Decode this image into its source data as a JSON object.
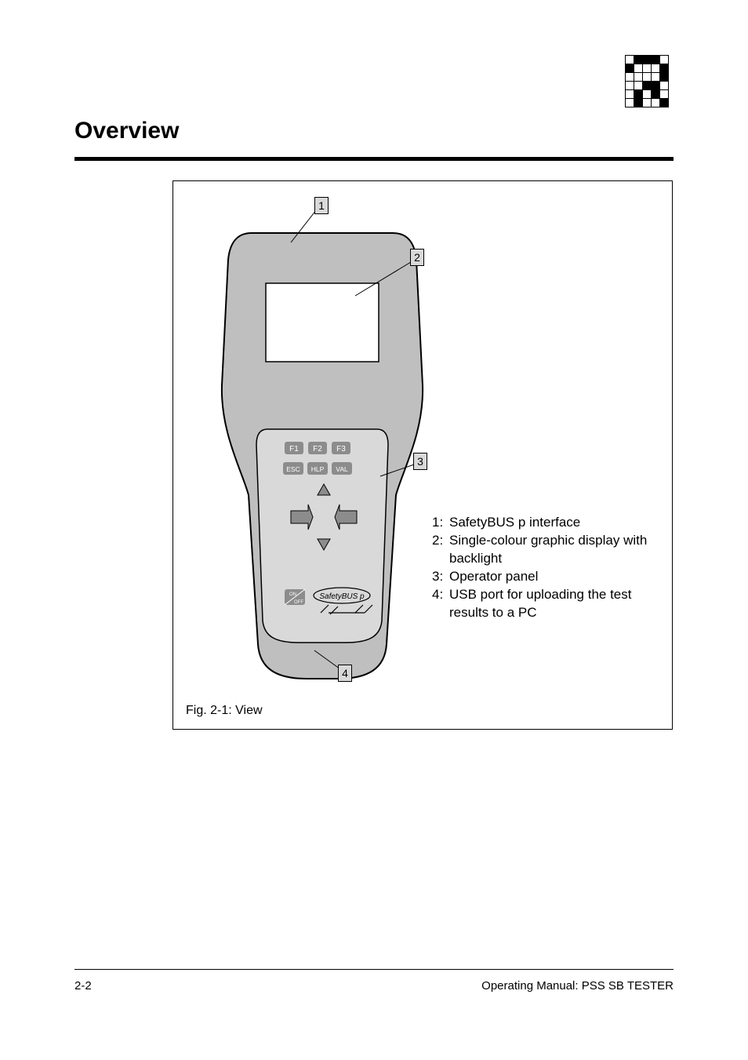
{
  "page": {
    "title": "Overview",
    "fig_caption": "Fig. 2-1: View",
    "footer_left": "2-2",
    "footer_right": "Operating Manual: PSS SB TESTER"
  },
  "logo": {
    "cell_size": 11,
    "rows": 6,
    "cols": 5,
    "fill_dark": "#000000",
    "fill_light": "#ffffff",
    "stroke": "#000000",
    "pattern": [
      [
        0,
        1,
        1,
        1,
        0
      ],
      [
        1,
        0,
        0,
        0,
        1
      ],
      [
        0,
        0,
        0,
        0,
        1
      ],
      [
        0,
        0,
        1,
        1,
        0
      ],
      [
        0,
        1,
        0,
        1,
        0
      ],
      [
        0,
        1,
        0,
        0,
        1
      ]
    ]
  },
  "device": {
    "body_fill": "#bfbfbf",
    "body_stroke": "#000000",
    "screen_fill": "#ffffff",
    "panel_fill": "#d9d9d9",
    "key_fill": "#8c8c8c",
    "key_text_fill": "#ffffff",
    "keys": {
      "f1": "F1",
      "f2": "F2",
      "f3": "F3",
      "esc": "ESC",
      "hlp": "HLP",
      "val": "VAL"
    },
    "onoff_on": "ON",
    "onoff_off": "OFF",
    "brand": "SafetyBUS p"
  },
  "callouts": {
    "n1": "1",
    "n2": "2",
    "n3": "3",
    "n4": "4"
  },
  "legend": {
    "n1": "1:",
    "t1": "SafetyBUS p interface",
    "n2": "2:",
    "t2": " Single-colour graphic display with backlight",
    "n3": "3:",
    "t3": "Operator panel",
    "n4": "4:",
    "t4": "USB port for uploading the test results to a PC"
  },
  "colors": {
    "callout_bg": "#d9d9d9",
    "text": "#000000"
  }
}
